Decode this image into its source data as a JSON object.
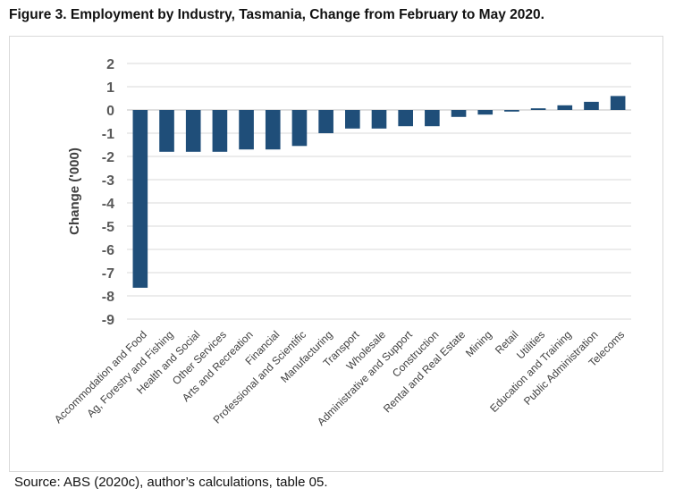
{
  "figure": {
    "title": "Figure 3. Employment by Industry, Tasmania, Change from February to May 2020.",
    "source": "Source: ABS (2020c), author’s calculations, table 05."
  },
  "colors": {
    "bar": "#1f4e79",
    "gridline": "#d9d9d9",
    "zero_line": "#bfbfbf"
  },
  "chart_data": {
    "type": "bar",
    "title": "",
    "xlabel": "",
    "ylabel": "Change ('000)",
    "ylim": [
      -9,
      2
    ],
    "yticks": [
      2,
      1,
      0,
      -1,
      -2,
      -3,
      -4,
      -5,
      -6,
      -7,
      -8,
      -9
    ],
    "grid": true,
    "categories": [
      "Accommodation and Food",
      "Ag, Forestry and Fishing",
      "Health and Social",
      "Other Services",
      "Arts and Recreation",
      "Financial",
      "Professional and Scientific",
      "Manufacturing",
      "Transport",
      "Wholesale",
      "Administrative and Support",
      "Construction",
      "Rental and Real Estate",
      "Mining",
      "Retail",
      "Utilities",
      "Education and Training",
      "Public Administration",
      "Telecoms"
    ],
    "values": [
      -7.65,
      -1.8,
      -1.8,
      -1.8,
      -1.7,
      -1.7,
      -1.55,
      -1.0,
      -0.8,
      -0.8,
      -0.7,
      -0.7,
      -0.3,
      -0.2,
      -0.07,
      0.07,
      0.2,
      0.35,
      0.6
    ]
  }
}
